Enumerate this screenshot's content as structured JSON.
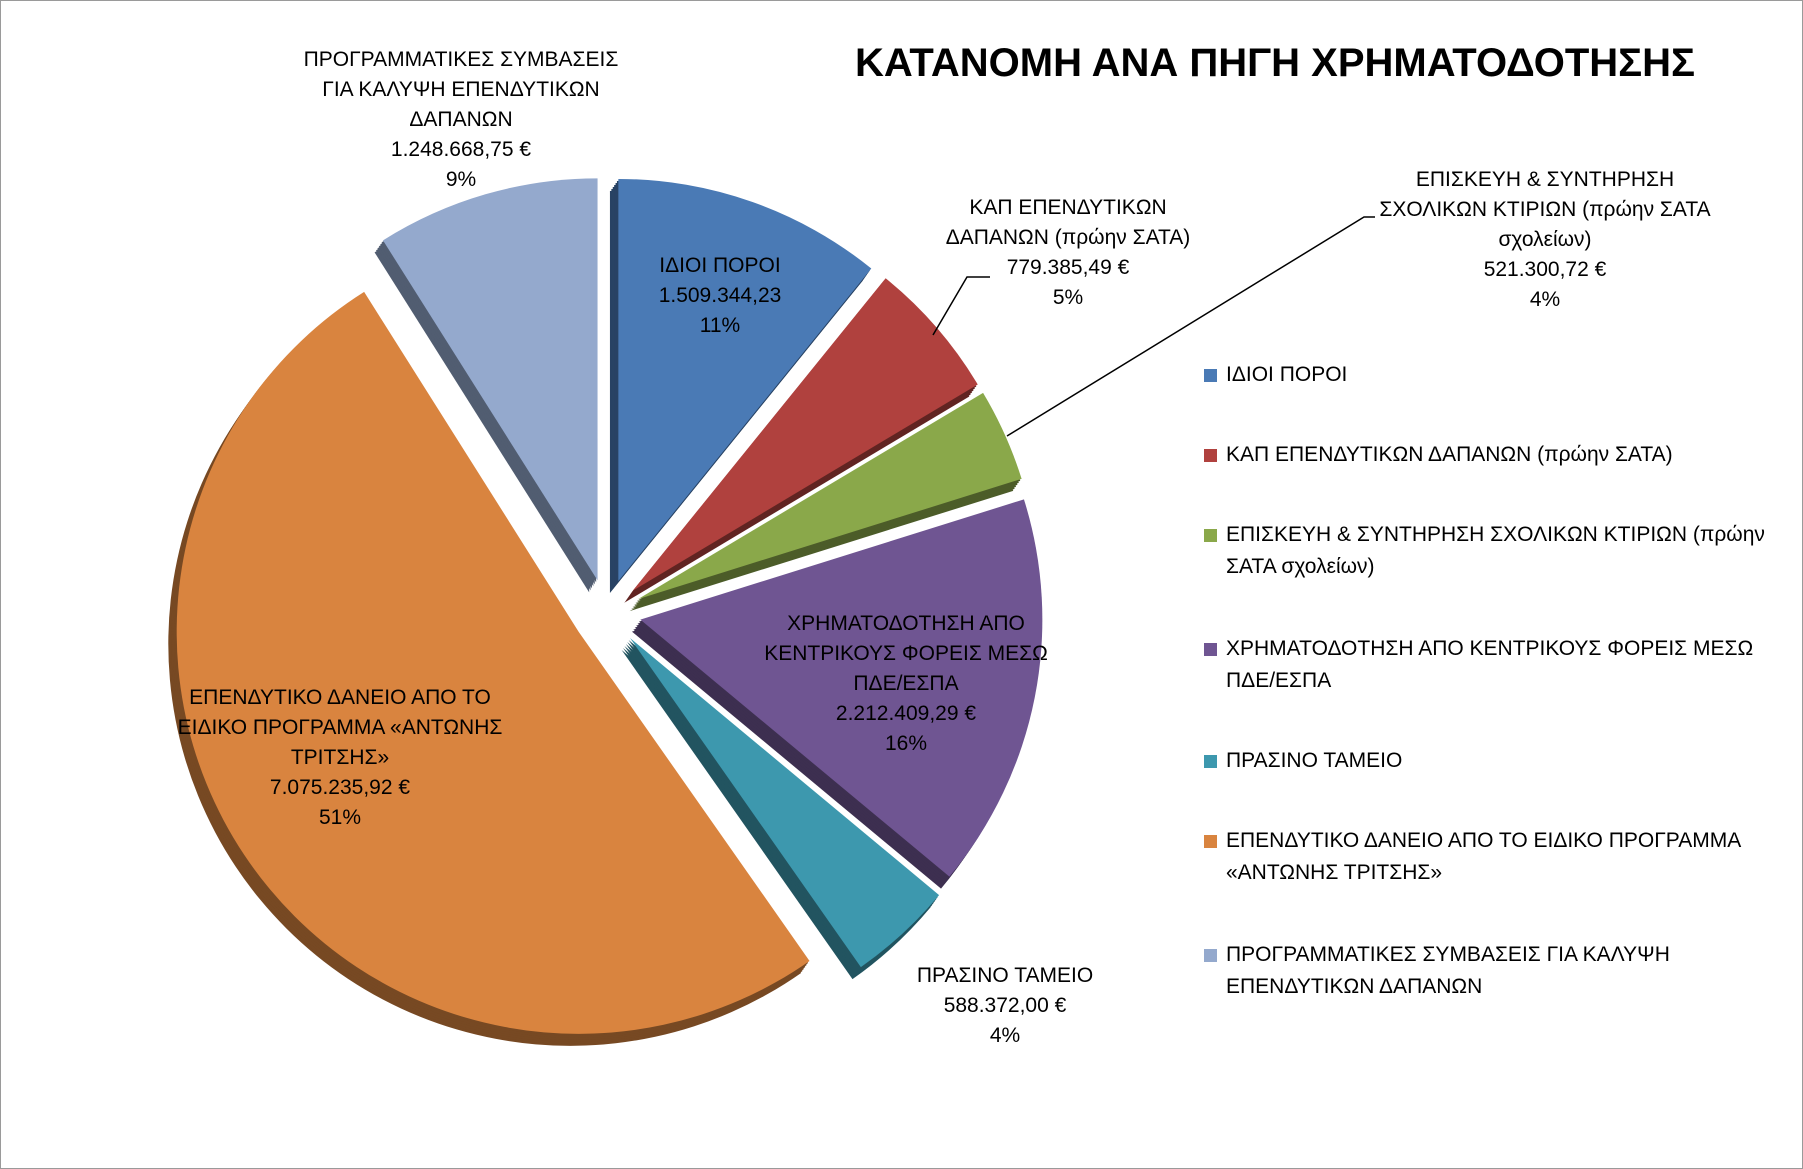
{
  "chart_data": {
    "type": "pie",
    "title": "ΚΑΤΑΝΟΜΗ ΑΝΑ ΠΗΓΗ ΧΡΗΜΑΤΟΔΟΤΗΣΗΣ",
    "categories": [
      "ΙΔΙΟΙ ΠΟΡΟΙ",
      "ΚΑΠ ΕΠΕΝΔΥΤΙΚΩΝ ΔΑΠΑΝΩΝ  (πρώην ΣΑΤΑ)",
      "ΕΠΙΣΚΕΥΗ & ΣΥΝΤΗΡΗΣΗ ΣΧΟΛΙΚΩΝ ΚΤΙΡΙΩΝ (πρώην ΣΑΤΑ σχολείων)",
      "ΧΡΗΜΑΤΟΔΟΤΗΣΗ ΑΠΟ ΚΕΝΤΡΙΚΟΥΣ ΦΟΡΕΙΣ ΜΕΣΩ ΠΔΕ/ΕΣΠΑ",
      "ΠΡΑΣΙΝΟ ΤΑΜΕΙΟ",
      "ΕΠΕΝΔΥΤΙΚΟ ΔΑΝΕΙΟ ΑΠΟ ΤΟ ΕΙΔΙΚΟ ΠΡΟΓΡΑΜΜΑ «ΑΝΤΩΝΗΣ ΤΡΙΤΣΗΣ»",
      "ΠΡΟΓΡΑΜΜΑΤΙΚΕΣ ΣΥΜΒΑΣΕΙΣ ΓΙΑ ΚΑΛΥΨΗ ΕΠΕΝΔΥΤΙΚΩΝ ΔΑΠΑΝΩΝ"
    ],
    "values": [
      1509344.23,
      779385.49,
      521300.72,
      2212409.29,
      588372.0,
      7075235.92,
      1248668.75
    ],
    "value_labels": [
      "1.509.344,23",
      "779.385,49 €",
      "521.300,72 €",
      "2.212.409,29 €",
      "588.372,00 €",
      "7.075.235,92 €",
      "1.248.668,75 €"
    ],
    "percent_labels": [
      "11%",
      "5%",
      "4%",
      "16%",
      "4%",
      "51%",
      "9%"
    ],
    "colors": [
      "#4a7ab5",
      "#b0413e",
      "#8aa84a",
      "#6f5592",
      "#3d98ae",
      "#d9843f",
      "#94a9cd"
    ],
    "legend": "right"
  }
}
